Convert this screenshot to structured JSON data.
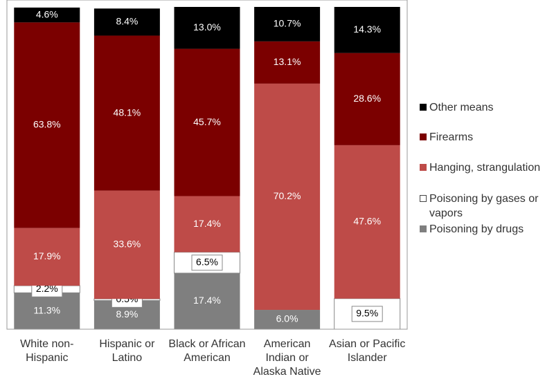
{
  "chart_data": {
    "type": "stacked_bar",
    "categories": [
      "White non-Hispanic",
      "Hispanic or Latino",
      "Black or African American",
      "American Indian or Alaska Native",
      "Asian or Pacific Islander"
    ],
    "series": [
      {
        "name": "Poisoning by drugs",
        "color": "#7f7f7f",
        "values": [
          11.3,
          8.9,
          17.4,
          6.0,
          null
        ],
        "value_labels": [
          "11.3%",
          "8.9%",
          "17.4%",
          "6.0%",
          null
        ]
      },
      {
        "name": "Poisoning by gases or vapors",
        "color": "#ffffff",
        "values": [
          2.2,
          0.5,
          6.5,
          null,
          9.5
        ],
        "value_labels": [
          "2.2%",
          "0.5%",
          "6.5%",
          null,
          "9.5%"
        ]
      },
      {
        "name": "Hanging, strangulation",
        "color": "#be4b48",
        "values": [
          17.9,
          33.6,
          17.4,
          70.2,
          47.6
        ],
        "value_labels": [
          "17.9%",
          "33.6%",
          "17.4%",
          "70.2%",
          "47.6%"
        ]
      },
      {
        "name": "Firearms",
        "color": "#7b0000",
        "values": [
          63.8,
          48.1,
          45.7,
          13.1,
          28.6
        ],
        "value_labels": [
          "63.8%",
          "48.1%",
          "45.7%",
          "13.1%",
          "28.6%"
        ]
      },
      {
        "name": "Other means",
        "color": "#000000",
        "values": [
          4.6,
          8.4,
          13.0,
          10.7,
          14.3
        ],
        "value_labels": [
          "4.6%",
          "8.4%",
          "13.0%",
          "10.7%",
          "14.3%"
        ]
      }
    ],
    "ylim": [
      0,
      100
    ],
    "legend": "right"
  }
}
